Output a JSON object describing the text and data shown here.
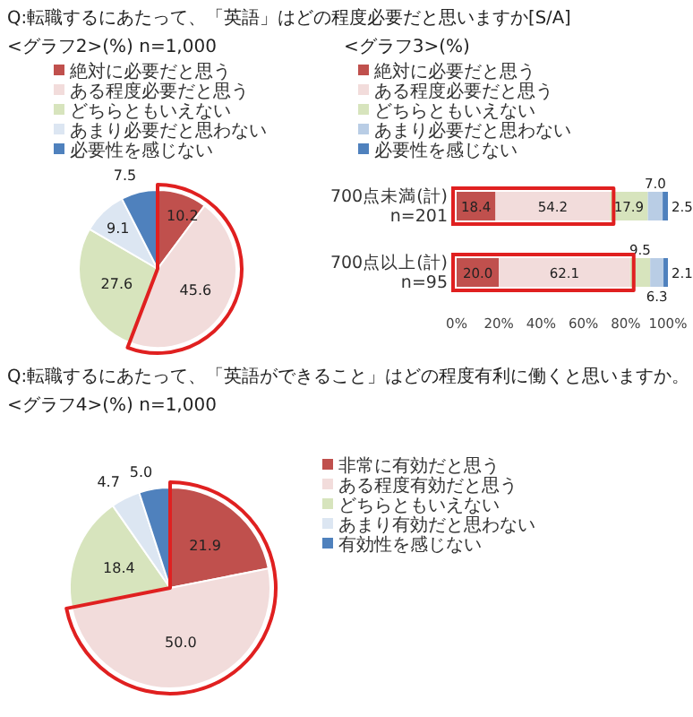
{
  "chart_data": [
    {
      "type": "pie",
      "title": "<グラフ2>(%) n=1,000",
      "annotations": [
        "Q:転職するにあたって、「英語」はどの程度必要だと思いますか[S/A]"
      ],
      "categories": [
        "絶対に必要だと思う",
        "ある程度必要だと思う",
        "どちらともいえない",
        "あまり必要だと思わない",
        "必要性を感じない"
      ],
      "values": [
        10.2,
        45.6,
        27.6,
        9.1,
        7.5
      ],
      "value_labels": [
        "10.2",
        "45.6",
        "27.6",
        "9.1",
        "7.5"
      ],
      "colors": [
        "#c0504d",
        "#f2dcdb",
        "#d7e4bd",
        "#dce6f2",
        "#4f81bd"
      ],
      "legend": "top"
    },
    {
      "type": "bar",
      "orientation": "horizontal",
      "stacked": true,
      "title": "<グラフ3>(%)",
      "categories": [
        "700点未満(計) n=201",
        "700点以上(計) n=95"
      ],
      "series": [
        {
          "name": "絶対に必要だと思う",
          "color": "#c0504d",
          "values": [
            18.4,
            20.0
          ],
          "value_labels": [
            "18.4",
            "20.0"
          ]
        },
        {
          "name": "ある程度必要だと思う",
          "color": "#f2dcdb",
          "values": [
            54.2,
            62.1
          ],
          "value_labels": [
            "54.2",
            "62.1"
          ]
        },
        {
          "name": "どちらともいえない",
          "color": "#d7e4bd",
          "values": [
            17.9,
            9.5
          ],
          "value_labels": [
            "17.9",
            "9.5"
          ]
        },
        {
          "name": "あまり必要だと思わない",
          "color": "#b9cde5",
          "values": [
            7.0,
            6.3
          ],
          "value_labels": [
            "7.0",
            "6.3"
          ]
        },
        {
          "name": "必要性を感じない",
          "color": "#4f81bd",
          "values": [
            2.5,
            2.1
          ],
          "value_labels": [
            "2.5",
            "2.1"
          ]
        }
      ],
      "xlim": [
        0,
        100
      ],
      "xticks": [
        {
          "value": 0,
          "label": "0%"
        },
        {
          "value": 20,
          "label": "20%"
        },
        {
          "value": 40,
          "label": "40%"
        },
        {
          "value": 60,
          "label": "60%"
        },
        {
          "value": 80,
          "label": "80%"
        },
        {
          "value": 100,
          "label": "100%"
        }
      ],
      "legend": "top"
    },
    {
      "type": "pie",
      "title": "<グラフ4>(%) n=1,000",
      "annotations": [
        "Q:転職するにあたって、「英語ができること」はどの程度有利に働くと思いますか。"
      ],
      "categories": [
        "非常に有効だと思う",
        "ある程度有効だと思う",
        "どちらともいえない",
        "あまり有効だと思わない",
        "有効性を感じない"
      ],
      "values": [
        21.9,
        50.0,
        18.4,
        4.7,
        5.0
      ],
      "value_labels": [
        "21.9",
        "50.0",
        "18.4",
        "4.7",
        "5.0"
      ],
      "colors": [
        "#c0504d",
        "#f2dcdb",
        "#d7e4bd",
        "#dce6f2",
        "#4f81bd"
      ],
      "legend": "top"
    }
  ]
}
